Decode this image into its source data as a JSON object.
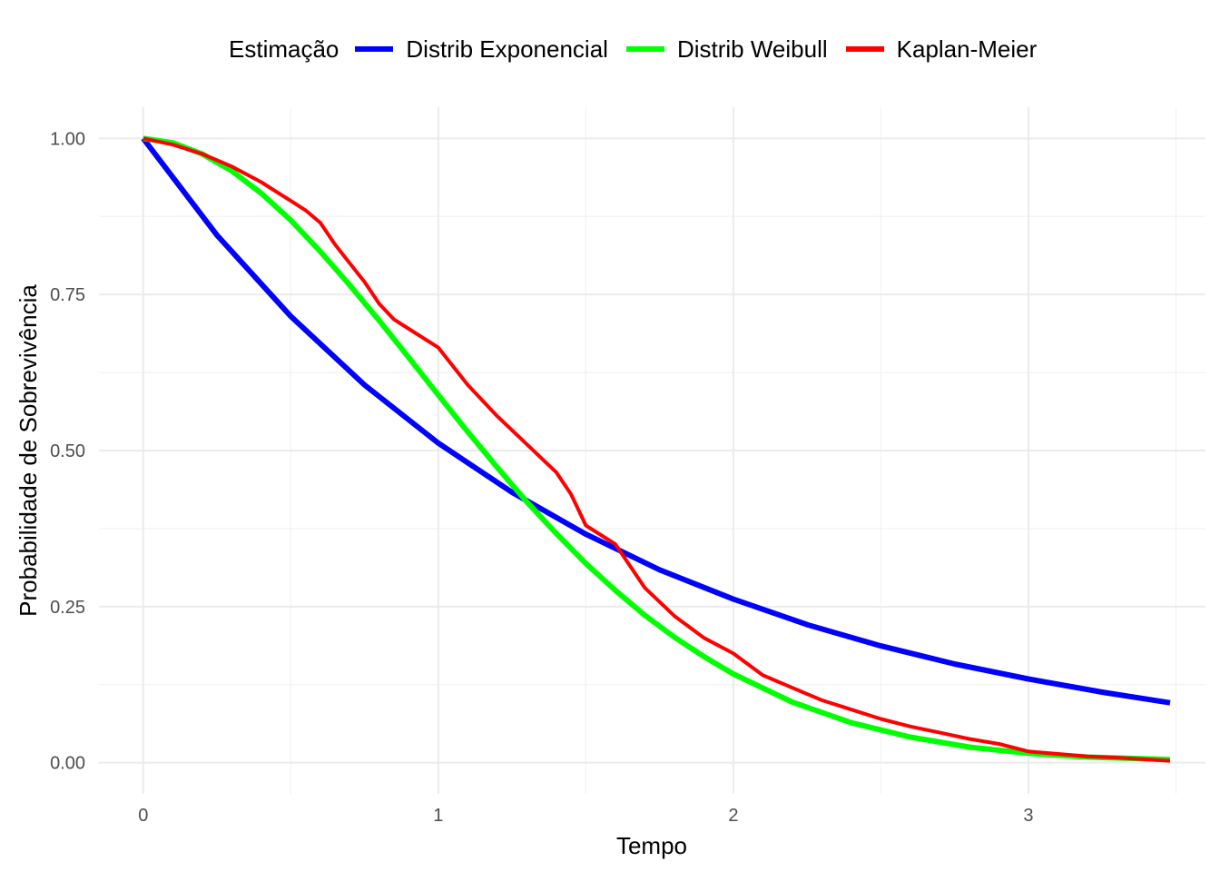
{
  "legend": {
    "title": "Estimação",
    "items": [
      {
        "label": "Distrib Exponencial",
        "color": "#0000ff"
      },
      {
        "label": "Distrib Weibull",
        "color": "#00ff00"
      },
      {
        "label": "Kaplan-Meier",
        "color": "#ff0000"
      }
    ]
  },
  "chart_data": {
    "type": "line",
    "xlabel": "Tempo",
    "ylabel": "Probabilidade de Sobrevivência",
    "xlim": [
      -0.15,
      3.6
    ],
    "ylim": [
      -0.05,
      1.05
    ],
    "x_ticks": [
      0,
      1,
      2,
      3
    ],
    "x_tick_labels": [
      "0",
      "1",
      "2",
      "3"
    ],
    "y_ticks": [
      0,
      0.25,
      0.5,
      0.75,
      1.0
    ],
    "y_tick_labels": [
      "0.00",
      "0.25",
      "0.50",
      "0.75",
      "1.00"
    ],
    "grid": true,
    "legend_position": "top",
    "series": [
      {
        "name": "Distrib Exponencial",
        "color": "#0000ff",
        "x": [
          0,
          0.25,
          0.5,
          0.75,
          1.0,
          1.25,
          1.5,
          1.75,
          2.0,
          2.25,
          2.5,
          2.75,
          3.0,
          3.25,
          3.48
        ],
        "y": [
          1.0,
          0.845,
          0.715,
          0.605,
          0.512,
          0.433,
          0.366,
          0.309,
          0.262,
          0.221,
          0.187,
          0.158,
          0.134,
          0.113,
          0.096
        ]
      },
      {
        "name": "Distrib Weibull",
        "color": "#00ff00",
        "x": [
          0,
          0.1,
          0.2,
          0.3,
          0.4,
          0.5,
          0.6,
          0.7,
          0.8,
          0.9,
          1.0,
          1.1,
          1.2,
          1.3,
          1.4,
          1.5,
          1.6,
          1.7,
          1.8,
          1.9,
          2.0,
          2.2,
          2.4,
          2.6,
          2.8,
          3.0,
          3.2,
          3.48
        ],
        "y": [
          1.0,
          0.993,
          0.975,
          0.948,
          0.912,
          0.869,
          0.819,
          0.765,
          0.708,
          0.649,
          0.589,
          0.53,
          0.473,
          0.418,
          0.367,
          0.319,
          0.276,
          0.236,
          0.201,
          0.17,
          0.142,
          0.097,
          0.064,
          0.041,
          0.025,
          0.015,
          0.009,
          0.005
        ]
      },
      {
        "name": "Kaplan-Meier",
        "color": "#ff0000",
        "x": [
          0,
          0.05,
          0.1,
          0.2,
          0.3,
          0.4,
          0.45,
          0.5,
          0.55,
          0.6,
          0.65,
          0.7,
          0.75,
          0.8,
          0.85,
          0.9,
          1.0,
          1.05,
          1.1,
          1.2,
          1.3,
          1.4,
          1.45,
          1.5,
          1.6,
          1.7,
          1.8,
          1.9,
          2.0,
          2.1,
          2.2,
          2.3,
          2.4,
          2.5,
          2.6,
          2.7,
          2.8,
          2.9,
          3.0,
          3.1,
          3.2,
          3.3,
          3.48
        ],
        "y": [
          1.0,
          0.995,
          0.99,
          0.975,
          0.955,
          0.93,
          0.915,
          0.9,
          0.885,
          0.865,
          0.83,
          0.8,
          0.77,
          0.735,
          0.71,
          0.695,
          0.665,
          0.635,
          0.605,
          0.555,
          0.51,
          0.465,
          0.43,
          0.38,
          0.35,
          0.28,
          0.235,
          0.2,
          0.175,
          0.14,
          0.12,
          0.1,
          0.085,
          0.07,
          0.058,
          0.048,
          0.038,
          0.03,
          0.018,
          0.014,
          0.01,
          0.008,
          0.003
        ]
      }
    ]
  }
}
